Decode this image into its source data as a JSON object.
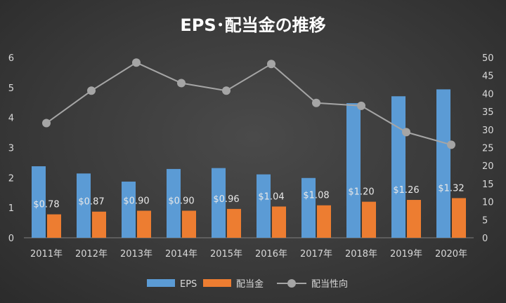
{
  "chart_data": {
    "type": "bar",
    "title": "EPS･配当金の推移",
    "categories": [
      "2011年",
      "2012年",
      "2013年",
      "2014年",
      "2015年",
      "2016年",
      "2017年",
      "2018年",
      "2019年",
      "2020年"
    ],
    "series": [
      {
        "name": "EPS",
        "type": "bar",
        "axis": "left",
        "color": "#5b9bd5",
        "values": [
          2.38,
          2.14,
          1.87,
          2.29,
          2.32,
          2.11,
          1.99,
          4.48,
          4.71,
          4.94
        ]
      },
      {
        "name": "配当金",
        "type": "bar",
        "axis": "left",
        "color": "#ed7d31",
        "values": [
          0.78,
          0.87,
          0.9,
          0.9,
          0.96,
          1.04,
          1.08,
          1.2,
          1.26,
          1.32
        ],
        "labels": [
          "$0.78",
          "$0.87",
          "$0.90",
          "$0.90",
          "$0.96",
          "$1.04",
          "$1.08",
          "$1.20",
          "$1.26",
          "$1.32"
        ]
      },
      {
        "name": "配当性向",
        "type": "line",
        "axis": "right",
        "color": "#a5a5a5",
        "values": [
          31.8,
          40.8,
          48.6,
          42.9,
          40.8,
          48.2,
          37.4,
          36.6,
          29.3,
          25.8
        ]
      }
    ],
    "ylim": [
      0,
      6
    ],
    "yticks": [
      "0",
      "1",
      "2",
      "3",
      "4",
      "5",
      "6"
    ],
    "y2lim": [
      0,
      50
    ],
    "y2ticks": [
      "0",
      "5",
      "10",
      "15",
      "20",
      "25",
      "30",
      "35",
      "40",
      "45",
      "50"
    ],
    "legend": "bottom",
    "grid": false
  }
}
